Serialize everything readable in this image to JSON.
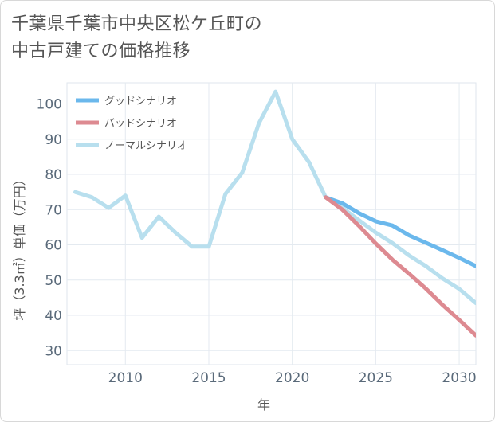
{
  "title_line1": "千葉県千葉市中央区松ケ丘町の",
  "title_line2": "中古戸建ての価格推移",
  "chart_data": {
    "type": "line",
    "xlabel": "年",
    "ylabel": "坪（3.3㎡）単価（万円）",
    "xlim": [
      2006.5,
      2031
    ],
    "ylim": [
      26,
      106
    ],
    "xticks": [
      2010,
      2015,
      2020,
      2025,
      2030
    ],
    "yticks": [
      30,
      40,
      50,
      60,
      70,
      80,
      90,
      100
    ],
    "grid": true,
    "legend_position": "top-left",
    "series": [
      {
        "name": "グッドシナリオ",
        "color": "#6bb8ec",
        "x": [
          2022,
          2023,
          2024,
          2025,
          2026,
          2027,
          2028,
          2029,
          2030,
          2031
        ],
        "values": [
          73.5,
          71.8,
          69,
          66.7,
          65.5,
          62.7,
          60.6,
          58.5,
          56.3,
          54
        ]
      },
      {
        "name": "バッドシナリオ",
        "color": "#dd8a91",
        "x": [
          2022,
          2023,
          2024,
          2025,
          2026,
          2027,
          2028,
          2029,
          2030,
          2031
        ],
        "values": [
          73.5,
          70,
          65.4,
          60.4,
          55.8,
          51.8,
          47.6,
          43,
          38.7,
          34.3
        ]
      },
      {
        "name": "ノーマルシナリオ",
        "color": "#b8dfee",
        "x": [
          2007,
          2008,
          2009,
          2010,
          2011,
          2012,
          2013,
          2014,
          2015,
          2016,
          2017,
          2018,
          2019,
          2020,
          2021,
          2022,
          2023,
          2024,
          2025,
          2026,
          2027,
          2028,
          2029,
          2030,
          2031
        ],
        "values": [
          75,
          73.5,
          70.5,
          74,
          62,
          68,
          63.5,
          59.5,
          59.5,
          74.5,
          80.5,
          94.5,
          103.5,
          90,
          83.5,
          73.5,
          70.5,
          67,
          63.5,
          60.5,
          57,
          54,
          50.5,
          47.5,
          43.5
        ]
      }
    ]
  }
}
